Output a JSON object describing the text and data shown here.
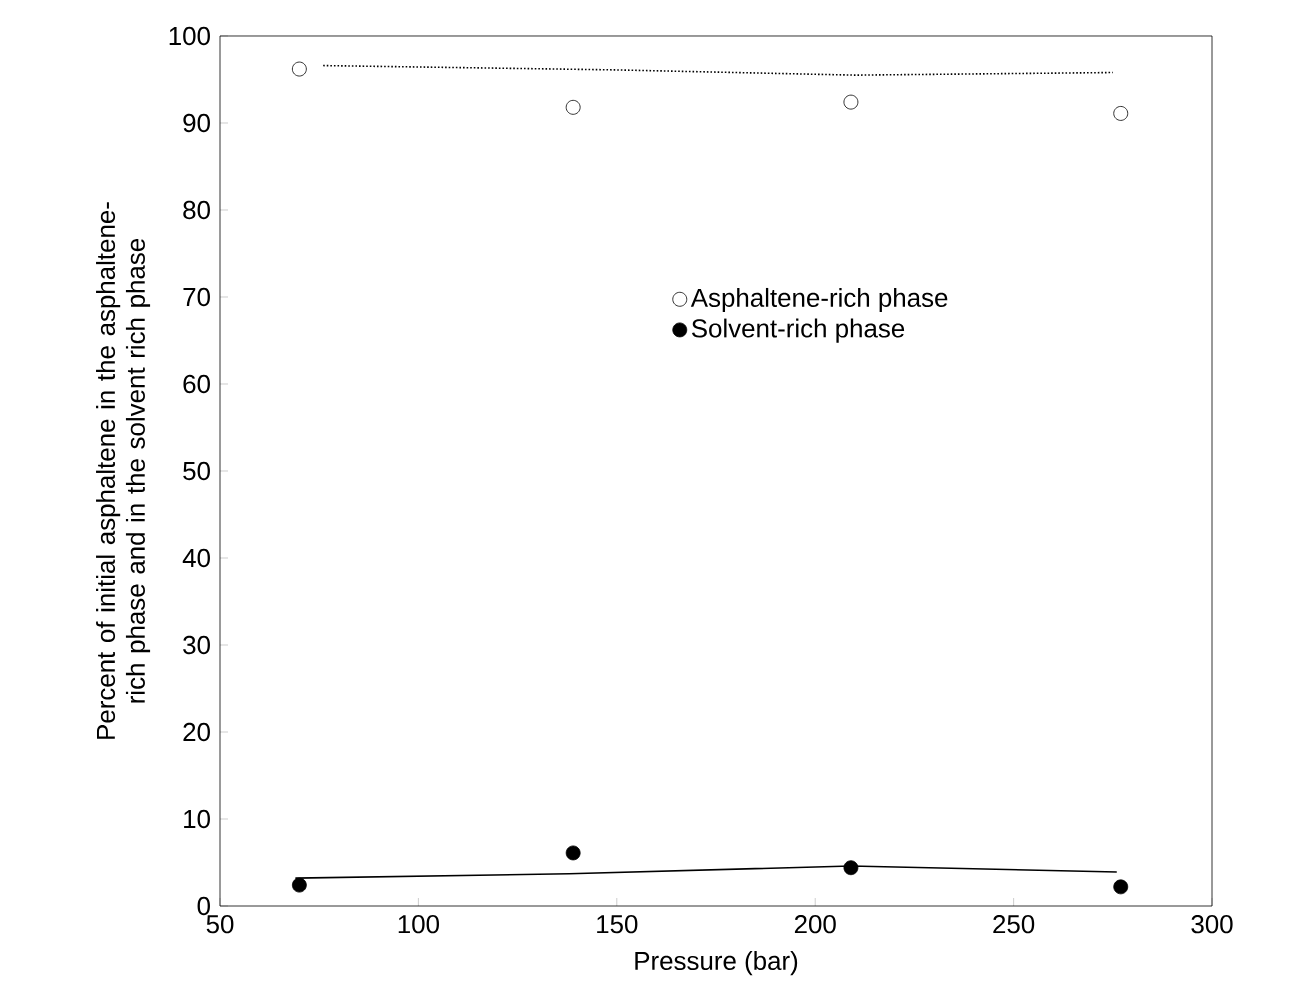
{
  "chart_data": {
    "type": "scatter",
    "xlabel": "Pressure (bar)",
    "ylabel": "Percent of initial asphaltene in the asphaltene-rich phase and in the solvent rich phase",
    "xlim": [
      50,
      300
    ],
    "ylim": [
      0,
      100
    ],
    "xticks": [
      50,
      100,
      150,
      200,
      250,
      300
    ],
    "yticks": [
      0,
      10,
      20,
      30,
      40,
      50,
      60,
      70,
      80,
      90,
      100
    ],
    "legend": "right",
    "series": [
      {
        "name": "Asphaltene-rich phase",
        "marker": "circle",
        "color": "#ffffff",
        "x": [
          70,
          139,
          209,
          277
        ],
        "values": [
          96.2,
          91.8,
          92.4,
          91.1
        ]
      },
      {
        "type": "line",
        "line_style": "dotted",
        "marker": "none",
        "color": "#000000",
        "x": [
          76,
          150,
          210,
          275
        ],
        "values": [
          96.6,
          96.1,
          95.5,
          95.8
        ]
      },
      {
        "name": "Solvent-rich phase",
        "marker": "circle",
        "color": "#000000",
        "x": [
          70,
          139,
          209,
          277
        ],
        "values": [
          2.4,
          6.1,
          4.4,
          2.2
        ]
      },
      {
        "type": "line",
        "line_style": "solid",
        "marker": "none",
        "color": "#000000",
        "x": [
          69,
          138,
          209,
          276
        ],
        "values": [
          3.2,
          3.7,
          4.6,
          3.9
        ]
      }
    ]
  }
}
